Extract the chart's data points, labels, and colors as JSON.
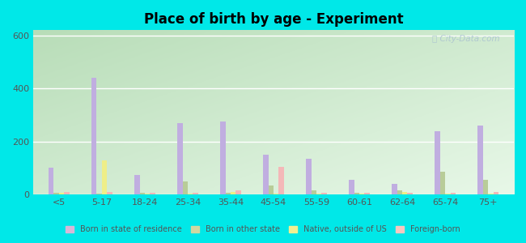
{
  "title": "Place of birth by age - Experiment",
  "categories": [
    "<5",
    "5-17",
    "18-24",
    "25-34",
    "35-44",
    "45-54",
    "55-59",
    "60-61",
    "62-64",
    "65-74",
    "75+"
  ],
  "series_names": [
    "Born in state of residence",
    "Born in other state",
    "Native, outside of US",
    "Foreign-born"
  ],
  "series_data": {
    "Born in state of residence": [
      100,
      440,
      75,
      270,
      275,
      150,
      135,
      55,
      40,
      240,
      260
    ],
    "Born in other state": [
      8,
      5,
      8,
      50,
      8,
      35,
      15,
      8,
      15,
      85,
      55
    ],
    "Native, outside of US": [
      8,
      130,
      5,
      5,
      10,
      5,
      5,
      5,
      10,
      5,
      5
    ],
    "Foreign-born": [
      10,
      10,
      8,
      8,
      15,
      105,
      8,
      8,
      8,
      8,
      10
    ]
  },
  "colors": {
    "Born in state of residence": "#c0aee0",
    "Born in other state": "#b8cc98",
    "Native, outside of US": "#eeee88",
    "Foreign-born": "#f4b8b8"
  },
  "legend_colors": {
    "Born in state of residence": "#d8b8d8",
    "Born in other state": "#d0d8a0",
    "Native, outside of US": "#f0f090",
    "Foreign-born": "#f8c8c0"
  },
  "ylim": [
    0,
    620
  ],
  "yticks": [
    0,
    200,
    400,
    600
  ],
  "outer_background": "#00e8e8",
  "bg_color_top_left": "#b8ddb8",
  "bg_color_bottom_right": "#e8f8e8",
  "watermark": "City-Data.com"
}
